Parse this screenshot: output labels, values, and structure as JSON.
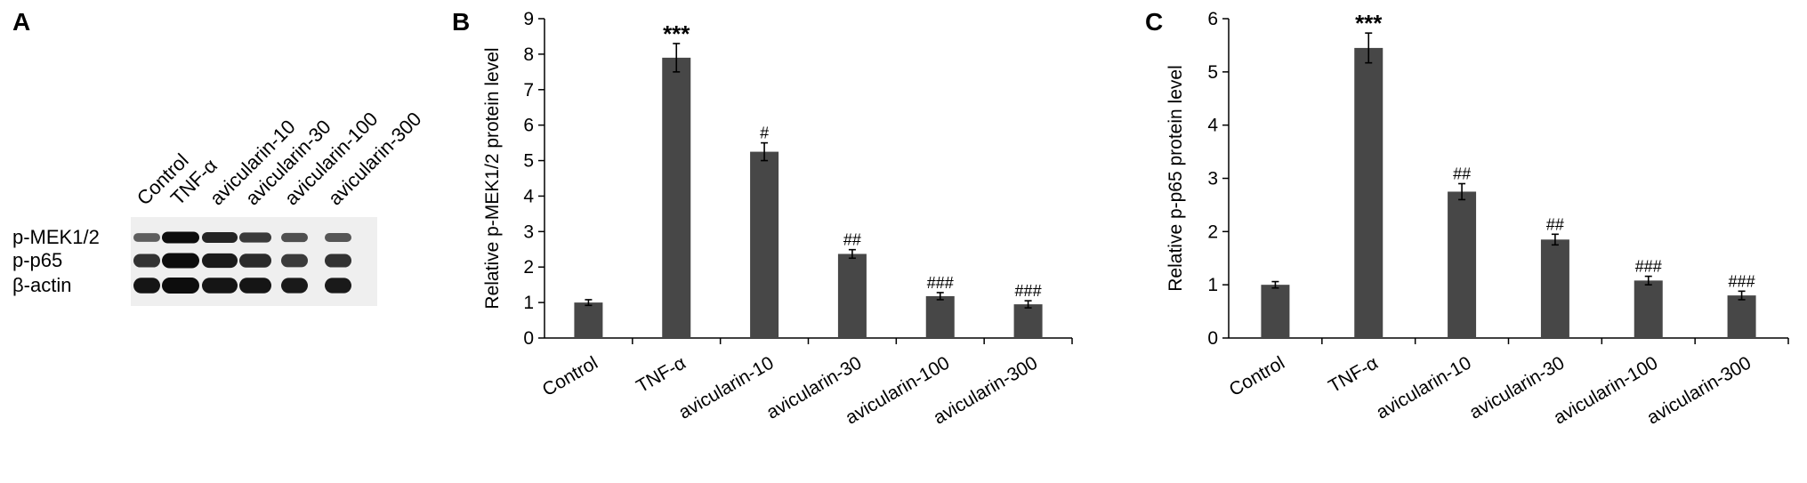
{
  "figure": {
    "panels": [
      {
        "letter": "A"
      },
      {
        "letter": "B"
      },
      {
        "letter": "C"
      }
    ]
  },
  "blot": {
    "lane_labels": [
      "Control",
      "TNF-α",
      "avicularin-10",
      "avicularin-30",
      "avicularin-100",
      "avicularin-300"
    ],
    "row_labels": [
      "p-MEK1/2",
      "p-p65",
      "β-actin"
    ],
    "band_intensity": [
      [
        0.45,
        1.0,
        0.85,
        0.7,
        0.55,
        0.5
      ],
      [
        0.75,
        1.0,
        0.9,
        0.8,
        0.7,
        0.75
      ],
      [
        0.95,
        1.0,
        0.95,
        0.95,
        0.9,
        0.9
      ]
    ],
    "band_color": "#0d0d0d"
  },
  "chart_data": [
    {
      "type": "bar",
      "categories": [
        "Control",
        "TNF-α",
        "avicularin-10",
        "avicularin-30",
        "avicularin-100",
        "avicularin-300"
      ],
      "values": [
        1.0,
        7.9,
        5.25,
        2.37,
        1.18,
        0.95
      ],
      "errors": [
        0.08,
        0.4,
        0.25,
        0.12,
        0.1,
        0.1
      ],
      "annotations": [
        "",
        "***",
        "#",
        "##",
        "###",
        "###"
      ],
      "title": "",
      "xlabel": "",
      "ylabel": "Relative p-MEK1/2 protein level",
      "ylim": [
        0,
        9
      ],
      "yticks": [
        0,
        1,
        2,
        3,
        4,
        5,
        6,
        7,
        8,
        9
      ],
      "grid": false,
      "bar_color": "#474747"
    },
    {
      "type": "bar",
      "categories": [
        "Control",
        "TNF-α",
        "avicularin-10",
        "avicularin-30",
        "avicularin-100",
        "avicularin-300"
      ],
      "values": [
        1.0,
        5.45,
        2.75,
        1.85,
        1.08,
        0.8
      ],
      "errors": [
        0.06,
        0.28,
        0.15,
        0.1,
        0.08,
        0.08
      ],
      "annotations": [
        "",
        "***",
        "##",
        "##",
        "###",
        "###"
      ],
      "title": "",
      "xlabel": "",
      "ylabel": "Relative p-p65 protein level",
      "ylim": [
        0,
        6
      ],
      "yticks": [
        0,
        1,
        2,
        3,
        4,
        5,
        6
      ],
      "grid": false,
      "bar_color": "#474747"
    }
  ]
}
